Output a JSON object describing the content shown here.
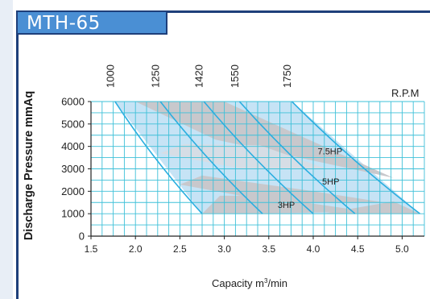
{
  "header": {
    "title": "MTH-65"
  },
  "chart_data": {
    "type": "line",
    "title": "MTH-65",
    "xlabel": "Capacity  m",
    "xlabel_sup": "3",
    "xlabel_tail": "/min",
    "ylabel": "Discharge  Pressure  mmAq",
    "rpm_label": "R.P.M",
    "xlim": [
      1.5,
      5.25
    ],
    "ylim": [
      0,
      6000
    ],
    "xticks": [
      "1.5",
      "2.0",
      "2.5",
      "3.0",
      "3.5",
      "4.0",
      "4.5",
      "5.0"
    ],
    "yticks": [
      "0",
      "1000",
      "2000",
      "3000",
      "4000",
      "5000",
      "6000"
    ],
    "grid": true,
    "series": [
      {
        "name": "1000",
        "x": [
          1.77,
          2.75
        ],
        "y": [
          6000,
          1000
        ]
      },
      {
        "name": "1250",
        "x": [
          2.28,
          3.43
        ],
        "y": [
          6000,
          1000
        ]
      },
      {
        "name": "1420",
        "x": [
          2.77,
          4.0
        ],
        "y": [
          6000,
          1000
        ]
      },
      {
        "name": "1550",
        "x": [
          3.17,
          4.47
        ],
        "y": [
          6000,
          1000
        ]
      },
      {
        "name": "1750",
        "x": [
          3.76,
          5.2
        ],
        "y": [
          6000,
          1000
        ]
      }
    ],
    "power_bands": [
      {
        "label": "7.5HP",
        "label_at": [
          4.05,
          3650
        ]
      },
      {
        "label": "5HP",
        "label_at": [
          4.1,
          2300
        ]
      },
      {
        "label": "3HP",
        "label_at": [
          3.6,
          1250
        ]
      }
    ],
    "colors": {
      "grid": "#3ec0d8",
      "curve": "#2aaee0",
      "band_gray": "#c8c8cc",
      "band_blue": "#c6e3f5",
      "axis": "#222222"
    }
  }
}
